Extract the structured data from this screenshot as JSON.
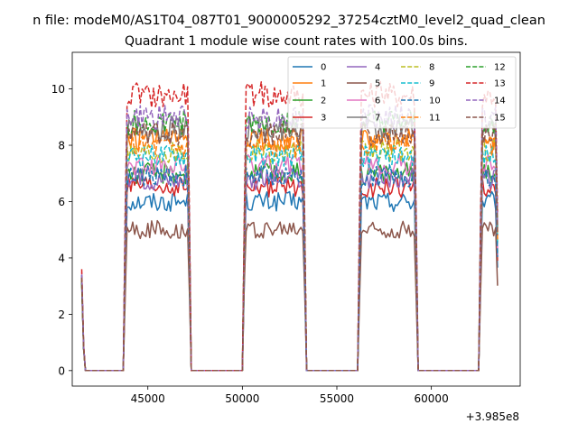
{
  "figure": {
    "suptitle": "n file: modeM0/AS1T04_087T01_9000005292_37254cztM0_level2_quad_clean",
    "title": "Quadrant 1 module wise count rates with 100.0s bins.",
    "offset_text": "+3.985e8"
  },
  "chart_data": {
    "type": "line",
    "title": "Quadrant 1 module wise count rates with 100.0s bins.",
    "xlabel": "",
    "ylabel": "",
    "x_offset": 398500000,
    "xlim": [
      41000,
      64700
    ],
    "ylim": [
      -0.55,
      11.3
    ],
    "xticks": [
      45000,
      50000,
      55000,
      60000
    ],
    "xtick_labels": [
      "45000",
      "50000",
      "55000",
      "60000"
    ],
    "yticks": [
      0,
      2,
      4,
      6,
      8,
      10
    ],
    "ytick_labels": [
      "0",
      "2",
      "4",
      "6",
      "8",
      "10"
    ],
    "grid": false,
    "legend": {
      "placement": "top-right",
      "columns": 4
    },
    "x_range": [
      41500,
      63500
    ],
    "bin_seconds": 100,
    "on_intervals": [
      [
        43800,
        47200
      ],
      [
        50100,
        53300
      ],
      [
        56200,
        59200
      ],
      [
        62600,
        63500
      ]
    ],
    "series": [
      {
        "name": "0",
        "color": "#1f77b4",
        "dash": "solid",
        "level": 6.0,
        "start": 3.2
      },
      {
        "name": "1",
        "color": "#ff7f0e",
        "dash": "solid",
        "level": 8.2,
        "start": 3.3
      },
      {
        "name": "2",
        "color": "#2ca02c",
        "dash": "solid",
        "level": 7.0,
        "start": 3.1
      },
      {
        "name": "3",
        "color": "#d62728",
        "dash": "solid",
        "level": 6.5,
        "start": 3.2
      },
      {
        "name": "4",
        "color": "#9467bd",
        "dash": "solid",
        "level": 6.8,
        "start": 3.4
      },
      {
        "name": "5",
        "color": "#8c564b",
        "dash": "solid",
        "level": 5.0,
        "start": 3.0
      },
      {
        "name": "6",
        "color": "#e377c2",
        "dash": "solid",
        "level": 7.3,
        "start": 3.5
      },
      {
        "name": "7",
        "color": "#7f7f7f",
        "dash": "solid",
        "level": 8.6,
        "start": 3.3
      },
      {
        "name": "8",
        "color": "#bcbd22",
        "dash": "dashed",
        "level": 7.8,
        "start": 3.2
      },
      {
        "name": "9",
        "color": "#17becf",
        "dash": "dashed",
        "level": 7.6,
        "start": 3.4
      },
      {
        "name": "10",
        "color": "#1f77b4",
        "dash": "dashed",
        "level": 6.9,
        "start": 3.2
      },
      {
        "name": "11",
        "color": "#ff7f0e",
        "dash": "dashed",
        "level": 8.0,
        "start": 3.3
      },
      {
        "name": "12",
        "color": "#2ca02c",
        "dash": "dashed",
        "level": 8.8,
        "start": 3.1
      },
      {
        "name": "13",
        "color": "#d62728",
        "dash": "dashed",
        "level": 9.8,
        "start": 3.6
      },
      {
        "name": "14",
        "color": "#9467bd",
        "dash": "dashed",
        "level": 9.0,
        "start": 3.4
      },
      {
        "name": "15",
        "color": "#8c564b",
        "dash": "dashed",
        "level": 8.4,
        "start": 3.3
      }
    ]
  }
}
